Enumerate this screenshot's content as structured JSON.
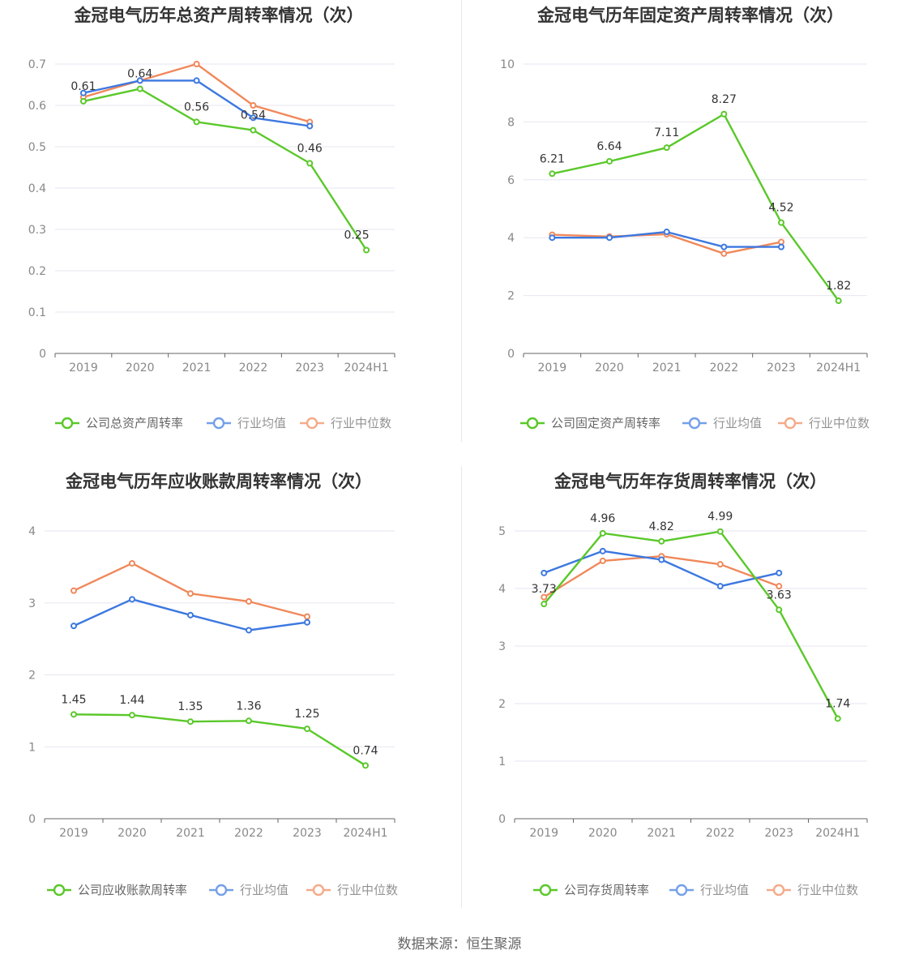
{
  "source": "数据来源：恒生聚源",
  "colors": {
    "company": "#5ac82a",
    "avg": "#3c78e0",
    "median": "#f0885a",
    "grid": "#e6e6f0",
    "axis": "#666666"
  },
  "legend": {
    "avg": "行业均值",
    "median": "行业中位数"
  },
  "chart_data": [
    {
      "type": "line",
      "title": "金冠电气历年总资产周转率情况（次）",
      "categories": [
        "2019",
        "2020",
        "2021",
        "2022",
        "2023",
        "2024H1"
      ],
      "ylim": [
        0,
        0.7
      ],
      "yticks": [
        0,
        0.1,
        0.2,
        0.3,
        0.4,
        0.5,
        0.6,
        0.7
      ],
      "ytick_labels": [
        "0",
        "0.1",
        "0.2",
        "0.3",
        "0.4",
        "0.5",
        "0.6",
        "0.7"
      ],
      "series": [
        {
          "name": "公司总资产周转率",
          "role": "company",
          "values": [
            0.61,
            0.64,
            0.56,
            0.54,
            0.46,
            0.25
          ],
          "labels": [
            "0.61",
            "0.64",
            "0.56",
            "0.54",
            "0.46",
            "0.25"
          ]
        },
        {
          "name": "行业均值",
          "role": "avg",
          "values": [
            0.63,
            0.66,
            0.66,
            0.57,
            0.55,
            null
          ]
        },
        {
          "name": "行业中位数",
          "role": "median",
          "values": [
            0.62,
            0.66,
            0.7,
            0.6,
            0.56,
            null
          ]
        }
      ]
    },
    {
      "type": "line",
      "title": "金冠电气历年固定资产周转率情况（次）",
      "categories": [
        "2019",
        "2020",
        "2021",
        "2022",
        "2023",
        "2024H1"
      ],
      "ylim": [
        0,
        10
      ],
      "yticks": [
        0,
        2,
        4,
        6,
        8,
        10
      ],
      "ytick_labels": [
        "0",
        "2",
        "4",
        "6",
        "8",
        "10"
      ],
      "series": [
        {
          "name": "公司固定资产周转率",
          "role": "company",
          "values": [
            6.21,
            6.64,
            7.11,
            8.27,
            4.52,
            1.82
          ],
          "labels": [
            "6.21",
            "6.64",
            "7.11",
            "8.27",
            "4.52",
            "1.82"
          ]
        },
        {
          "name": "行业均值",
          "role": "avg",
          "values": [
            4.0,
            4.0,
            4.2,
            3.68,
            3.68,
            null
          ]
        },
        {
          "name": "行业中位数",
          "role": "median",
          "values": [
            4.1,
            4.04,
            4.12,
            3.45,
            3.85,
            null
          ]
        }
      ]
    },
    {
      "type": "line",
      "title": "金冠电气历年应收账款周转率情况（次）",
      "categories": [
        "2019",
        "2020",
        "2021",
        "2022",
        "2023",
        "2024H1"
      ],
      "ylim": [
        0,
        4
      ],
      "yticks": [
        0,
        1,
        2,
        3,
        4
      ],
      "ytick_labels": [
        "0",
        "1",
        "2",
        "3",
        "4"
      ],
      "series": [
        {
          "name": "公司应收账款周转率",
          "role": "company",
          "values": [
            1.45,
            1.44,
            1.35,
            1.36,
            1.25,
            0.74
          ],
          "labels": [
            "1.45",
            "1.44",
            "1.35",
            "1.36",
            "1.25",
            "0.74"
          ]
        },
        {
          "name": "行业均值",
          "role": "avg",
          "values": [
            2.68,
            3.05,
            2.83,
            2.62,
            2.73,
            null
          ]
        },
        {
          "name": "行业中位数",
          "role": "median",
          "values": [
            3.17,
            3.55,
            3.13,
            3.02,
            2.81,
            null
          ]
        }
      ]
    },
    {
      "type": "line",
      "title": "金冠电气历年存货周转率情况（次）",
      "categories": [
        "2019",
        "2020",
        "2021",
        "2022",
        "2023",
        "2024H1"
      ],
      "ylim": [
        0,
        5
      ],
      "yticks": [
        0,
        1,
        2,
        3,
        4,
        5
      ],
      "ytick_labels": [
        "0",
        "1",
        "2",
        "3",
        "4",
        "5"
      ],
      "series": [
        {
          "name": "公司存货周转率",
          "role": "company",
          "values": [
            3.73,
            4.96,
            4.82,
            4.99,
            3.63,
            1.74
          ],
          "labels": [
            "3.73",
            "4.96",
            "4.82",
            "4.99",
            "3.63",
            "1.74"
          ]
        },
        {
          "name": "行业均值",
          "role": "avg",
          "values": [
            4.27,
            4.65,
            4.5,
            4.04,
            4.27,
            null
          ]
        },
        {
          "name": "行业中位数",
          "role": "median",
          "values": [
            3.85,
            4.48,
            4.56,
            4.42,
            4.04,
            null
          ]
        }
      ]
    }
  ]
}
